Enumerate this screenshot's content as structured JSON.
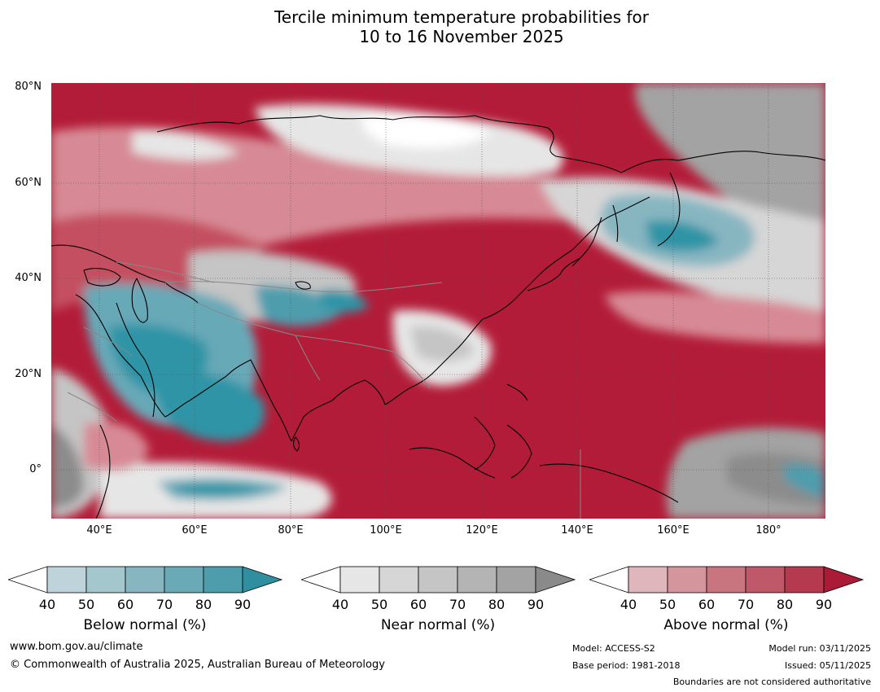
{
  "title_line1": "Tercile minimum temperature probabilities for",
  "title_line2": "10 to 16 November 2025",
  "map": {
    "lat_labels": [
      "80°N",
      "60°N",
      "40°N",
      "20°N",
      "0°"
    ],
    "lon_labels": [
      "40°E",
      "60°E",
      "80°E",
      "100°E",
      "120°E",
      "140°E",
      "160°E",
      "180°"
    ],
    "colors": {
      "above_strong": "#b31c38",
      "above_mid": "#c45060",
      "above_light": "#d78a95",
      "near_light": "#e6e6e6",
      "near_mid": "#c5c5c5",
      "near_dark": "#8c8c8c",
      "below_light": "#b8d2d8",
      "below_mid": "#68a9b8",
      "below_strong": "#2f94a6",
      "white": "#ffffff"
    }
  },
  "legends": [
    {
      "title": "Below normal (%)",
      "ticks": [
        "40",
        "50",
        "60",
        "70",
        "80",
        "90"
      ],
      "colors": [
        "#bfd4da",
        "#a4c6cd",
        "#87b6c1",
        "#6aa9b6",
        "#4d9dad",
        "#2f8fa1"
      ]
    },
    {
      "title": "Near normal (%)",
      "ticks": [
        "40",
        "50",
        "60",
        "70",
        "80",
        "90"
      ],
      "colors": [
        "#e6e6e6",
        "#d6d6d6",
        "#c5c5c5",
        "#b4b4b4",
        "#a3a3a3",
        "#8a8a8a"
      ]
    },
    {
      "title": "Above normal (%)",
      "ticks": [
        "40",
        "50",
        "60",
        "70",
        "80",
        "90"
      ],
      "colors": [
        "#dfb6bc",
        "#d5959d",
        "#c97580",
        "#bf5868",
        "#b63a4f",
        "#ab1a36"
      ]
    }
  ],
  "footer": {
    "url": "www.bom.gov.au/climate",
    "copyright": "© Commonwealth of Australia 2025, Australian Bureau of Meteorology",
    "model": "Model: ACCESS-S2",
    "base_period": "Base period: 1981-2018",
    "model_run": "Model run: 03/11/2025",
    "issued": "Issued: 05/11/2025",
    "disclaimer": "Boundaries are not considered authoritative"
  }
}
